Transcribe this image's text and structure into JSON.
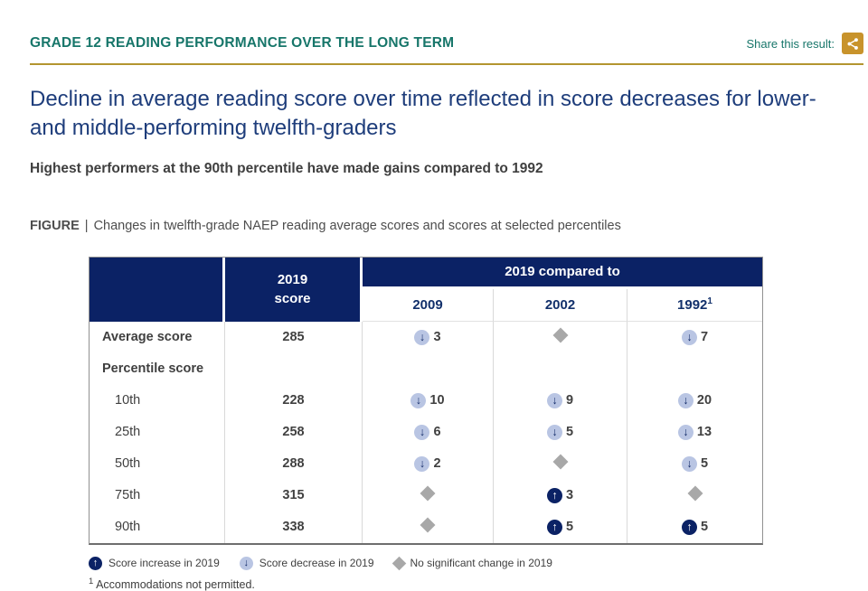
{
  "header": {
    "title": "GRADE 12 READING PERFORMANCE OVER THE LONG TERM",
    "share_label": "Share this result:"
  },
  "headline": "Decline in average reading score over time reflected in score decreases for lower- and middle-performing twelfth-graders",
  "subheadline": "Highest performers at the 90th percentile have made gains compared to 1992",
  "figure": {
    "label": "FIGURE",
    "separator": "|",
    "caption": "Changes in twelfth-grade NAEP reading average scores and scores at selected percentiles"
  },
  "chart_data": {
    "type": "table",
    "title": "Changes in twelfth-grade NAEP reading average scores and scores at selected percentiles",
    "score_column_header": "2019 score",
    "compare_header": "2019 compared to",
    "years": [
      {
        "label": "2009",
        "sup": ""
      },
      {
        "label": "2002",
        "sup": ""
      },
      {
        "label": "1992",
        "sup": "1"
      }
    ],
    "rows": [
      {
        "label": "Average score",
        "indent": false,
        "score": "285",
        "changes": [
          {
            "dir": "down",
            "value": "3"
          },
          {
            "dir": "none",
            "value": ""
          },
          {
            "dir": "down",
            "value": "7"
          }
        ]
      },
      {
        "label": "Percentile score",
        "indent": false,
        "score": "",
        "changes": [
          null,
          null,
          null
        ]
      },
      {
        "label": "10th",
        "indent": true,
        "score": "228",
        "changes": [
          {
            "dir": "down",
            "value": "10"
          },
          {
            "dir": "down",
            "value": "9"
          },
          {
            "dir": "down",
            "value": "20"
          }
        ]
      },
      {
        "label": "25th",
        "indent": true,
        "score": "258",
        "changes": [
          {
            "dir": "down",
            "value": "6"
          },
          {
            "dir": "down",
            "value": "5"
          },
          {
            "dir": "down",
            "value": "13"
          }
        ]
      },
      {
        "label": "50th",
        "indent": true,
        "score": "288",
        "changes": [
          {
            "dir": "down",
            "value": "2"
          },
          {
            "dir": "none",
            "value": ""
          },
          {
            "dir": "down",
            "value": "5"
          }
        ]
      },
      {
        "label": "75th",
        "indent": true,
        "score": "315",
        "changes": [
          {
            "dir": "none",
            "value": ""
          },
          {
            "dir": "up",
            "value": "3"
          },
          {
            "dir": "none",
            "value": ""
          }
        ]
      },
      {
        "label": "90th",
        "indent": true,
        "score": "338",
        "changes": [
          {
            "dir": "none",
            "value": ""
          },
          {
            "dir": "up",
            "value": "5"
          },
          {
            "dir": "up",
            "value": "5"
          }
        ]
      }
    ]
  },
  "legend": {
    "increase": "Score increase in 2019",
    "decrease": "Score decrease in 2019",
    "no_change": "No significant change in 2019"
  },
  "footnote": {
    "sup": "1",
    "text": "Accommodations not permitted."
  },
  "icons": {
    "up_glyph": "↑",
    "down_glyph": "↓"
  },
  "colors": {
    "navy_header": "#0b2265",
    "headline_navy": "#1e3d7b",
    "teal": "#17766a",
    "gold_rule": "#b3952f",
    "share_gold": "#c8932b",
    "down_circle_bg": "#b9c5e3",
    "diamond_gray": "#a8a8a8"
  }
}
